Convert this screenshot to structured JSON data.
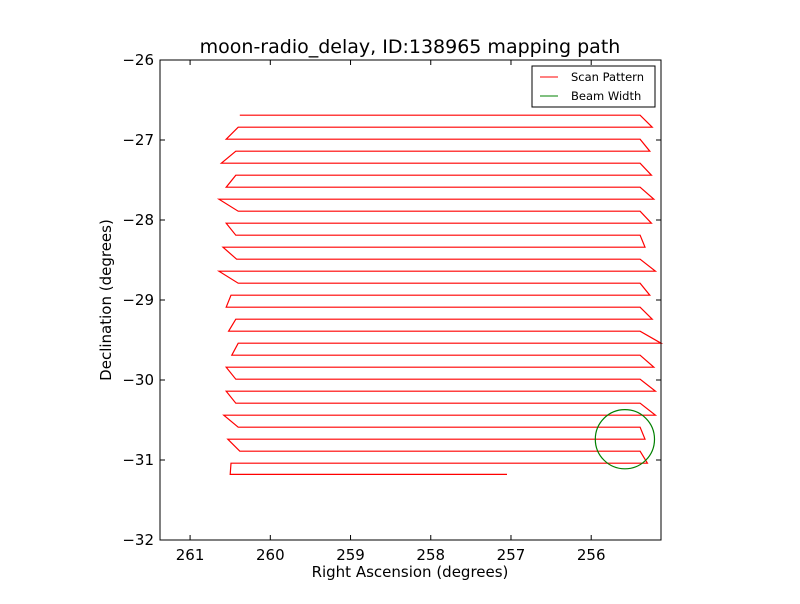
{
  "chart_data": {
    "type": "line",
    "title": "moon-radio_delay, ID:138965 mapping path",
    "xlabel": "Right Ascension (degrees)",
    "ylabel": "Declination (degrees)",
    "xlim": [
      261.375,
      255.13
    ],
    "ylim": [
      -32,
      -26
    ],
    "xticks": [
      "261",
      "260",
      "259",
      "258",
      "257",
      "256"
    ],
    "xtick_values": [
      261,
      260,
      259,
      258,
      257,
      256
    ],
    "yticks": [
      "−26",
      "−27",
      "−28",
      "−29",
      "−30",
      "−31",
      "−32"
    ],
    "ytick_values": [
      -26,
      -27,
      -28,
      -29,
      -30,
      -31,
      -32
    ],
    "legend": {
      "placement": "top-right",
      "entries": [
        {
          "label": "Scan Pattern",
          "color": "#ff0000"
        },
        {
          "label": "Beam Width",
          "color": "#008000"
        }
      ]
    },
    "scan_rows": {
      "dec": [
        -26.69,
        -26.84,
        -26.99,
        -27.14,
        -27.29,
        -27.44,
        -27.59,
        -27.74,
        -27.89,
        -28.04,
        -28.19,
        -28.34,
        -28.49,
        -28.64,
        -28.79,
        -28.94,
        -29.09,
        -29.24,
        -29.39,
        -29.54,
        -29.69,
        -29.84,
        -29.99,
        -30.14,
        -30.29,
        -30.44,
        -30.59,
        -30.74,
        -30.89,
        -31.04,
        -31.18
      ],
      "ra_left": [
        260.38,
        260.4,
        260.55,
        260.43,
        260.61,
        260.43,
        260.55,
        260.64,
        260.4,
        260.55,
        260.43,
        260.59,
        260.42,
        260.64,
        260.4,
        260.49,
        260.55,
        260.43,
        260.52,
        260.4,
        260.48,
        260.55,
        260.43,
        260.55,
        260.43,
        260.58,
        260.4,
        260.53,
        260.38,
        260.49,
        260.5
      ],
      "ra_right": [
        255.39,
        255.24,
        255.39,
        255.27,
        255.39,
        255.25,
        255.39,
        255.22,
        255.39,
        255.25,
        255.39,
        255.33,
        255.39,
        255.2,
        255.39,
        255.27,
        255.39,
        255.24,
        255.39,
        255.13,
        255.39,
        255.22,
        255.39,
        255.2,
        255.39,
        255.2,
        255.39,
        255.33,
        255.39,
        255.3,
        257.05
      ]
    },
    "beam": {
      "ra": 255.58,
      "dec": -30.74,
      "radius_deg": 0.37
    }
  }
}
